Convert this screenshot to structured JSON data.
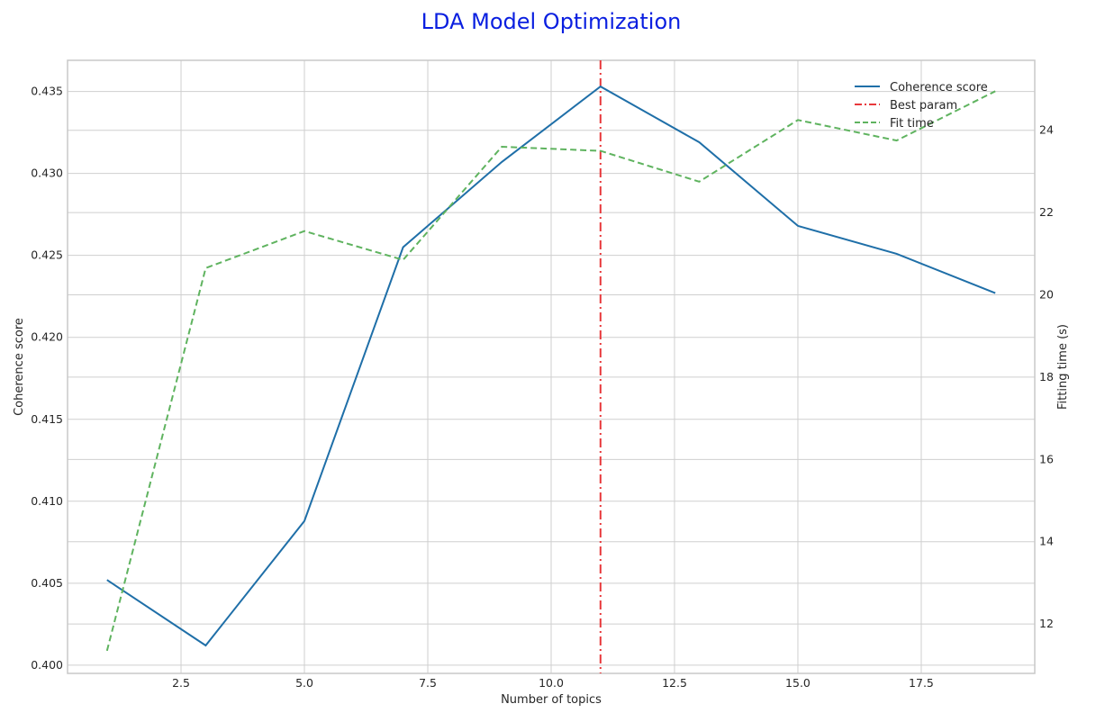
{
  "chart_data": {
    "type": "line",
    "title": "LDA Model Optimization",
    "xlabel": "Number of topics",
    "ylabel": "Coherence score",
    "y2label": "Fitting time (s)",
    "xlim": [
      0.2,
      19.8
    ],
    "ylim": [
      0.3995,
      0.4369
    ],
    "y2lim": [
      10.8,
      25.7
    ],
    "xticks": [
      2.5,
      5.0,
      7.5,
      10.0,
      12.5,
      15.0,
      17.5
    ],
    "xtick_labels": [
      "2.5",
      "5.0",
      "7.5",
      "10.0",
      "12.5",
      "15.0",
      "17.5"
    ],
    "yticks": [
      0.4,
      0.405,
      0.41,
      0.415,
      0.42,
      0.425,
      0.43,
      0.435
    ],
    "ytick_labels": [
      "0.400",
      "0.405",
      "0.410",
      "0.415",
      "0.420",
      "0.425",
      "0.430",
      "0.435"
    ],
    "y2ticks": [
      12,
      14,
      16,
      18,
      20,
      22,
      24
    ],
    "y2tick_labels": [
      "12",
      "14",
      "16",
      "18",
      "20",
      "22",
      "24"
    ],
    "grid": true,
    "legend_position": "top-right",
    "x": [
      1,
      3,
      5,
      7,
      9,
      11,
      13,
      15,
      17,
      19
    ],
    "series": [
      {
        "name": "Coherence score",
        "axis": "left",
        "color": "#1f6fa8",
        "style": "solid",
        "values": [
          0.4052,
          0.4012,
          0.4088,
          0.4255,
          0.4307,
          0.4353,
          0.4319,
          0.4268,
          0.4251,
          0.4227
        ]
      },
      {
        "name": "Fit time",
        "axis": "right",
        "color": "#5fb35f",
        "style": "dashed",
        "values": [
          11.35,
          20.65,
          21.55,
          20.85,
          23.6,
          23.5,
          22.75,
          24.25,
          23.75,
          24.95
        ]
      }
    ],
    "vline": {
      "name": "Best param",
      "x": 11,
      "color": "#e8383b",
      "style": "dashdot"
    }
  }
}
